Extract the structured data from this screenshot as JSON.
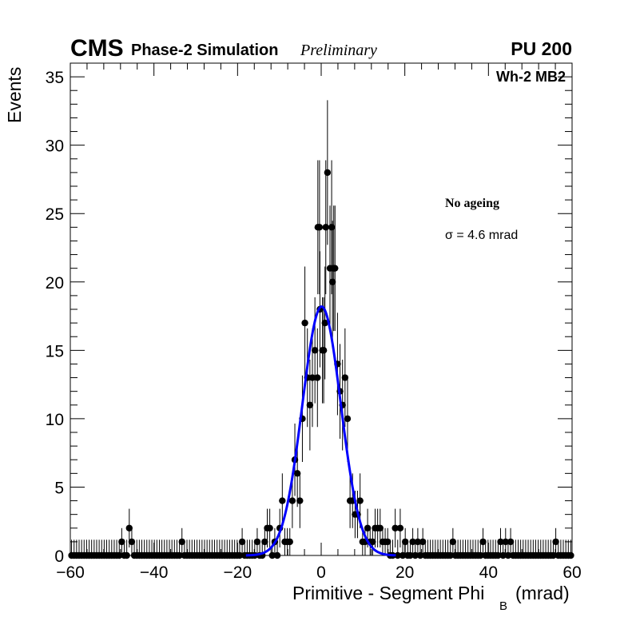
{
  "header": {
    "experiment": "CMS",
    "subtitle": "Phase-2 Simulation",
    "status": "Preliminary",
    "pileup": "PU 200"
  },
  "chart_data": {
    "type": "scatter",
    "title": "",
    "xlabel_main": "Primitive - Segment Phi",
    "xlabel_sub": "B",
    "xlabel_unit": "(mrad)",
    "ylabel": "Events",
    "xlim": [
      -60,
      60
    ],
    "ylim": [
      0,
      36
    ],
    "xticks": [
      -60,
      -40,
      -20,
      0,
      20,
      40,
      60
    ],
    "xtick_labels": [
      "−60",
      "−40",
      "−20",
      "0",
      "20",
      "40",
      "60"
    ],
    "yticks": [
      0,
      5,
      10,
      15,
      20,
      25,
      30,
      35
    ],
    "ytick_labels": [
      "0",
      "5",
      "10",
      "15",
      "20",
      "25",
      "30",
      "35"
    ],
    "bin_width": 0.6,
    "region_label": "Wh-2 MB2",
    "annotation_title": "No ageing",
    "annotation_sigma": "σ = 4.6 mrad",
    "nonzero_bins": [
      {
        "x": -47.7,
        "y": 1
      },
      {
        "x": -45.9,
        "y": 2
      },
      {
        "x": -45.3,
        "y": 1
      },
      {
        "x": -33.3,
        "y": 1
      },
      {
        "x": -18.9,
        "y": 1
      },
      {
        "x": -15.3,
        "y": 1
      },
      {
        "x": -13.5,
        "y": 1
      },
      {
        "x": -12.9,
        "y": 2
      },
      {
        "x": -12.3,
        "y": 2
      },
      {
        "x": -11.1,
        "y": 1
      },
      {
        "x": -9.9,
        "y": 2
      },
      {
        "x": -9.3,
        "y": 4
      },
      {
        "x": -8.7,
        "y": 1
      },
      {
        "x": -8.1,
        "y": 1
      },
      {
        "x": -7.5,
        "y": 1
      },
      {
        "x": -6.9,
        "y": 4
      },
      {
        "x": -6.3,
        "y": 7
      },
      {
        "x": -5.7,
        "y": 6
      },
      {
        "x": -5.1,
        "y": 4
      },
      {
        "x": -4.5,
        "y": 10
      },
      {
        "x": -3.9,
        "y": 17
      },
      {
        "x": -3.3,
        "y": 13
      },
      {
        "x": -2.7,
        "y": 11
      },
      {
        "x": -2.1,
        "y": 13
      },
      {
        "x": -1.5,
        "y": 15
      },
      {
        "x": -0.9,
        "y": 13
      },
      {
        "x": -0.3,
        "y": 18
      },
      {
        "x": 0.3,
        "y": 15
      },
      {
        "x": 0.9,
        "y": 17
      },
      {
        "x": 1.5,
        "y": 28
      },
      {
        "x": 2.1,
        "y": 21
      },
      {
        "x": 2.7,
        "y": 20
      },
      {
        "x": 3.3,
        "y": 21
      },
      {
        "x": 3.9,
        "y": 14
      },
      {
        "x": 4.5,
        "y": 12
      },
      {
        "x": 5.1,
        "y": 11
      },
      {
        "x": 5.7,
        "y": 13
      },
      {
        "x": 6.3,
        "y": 10
      },
      {
        "x": 6.9,
        "y": 4
      },
      {
        "x": 7.5,
        "y": 4
      },
      {
        "x": 8.1,
        "y": 3
      },
      {
        "x": 8.7,
        "y": 3
      },
      {
        "x": 9.3,
        "y": 4
      },
      {
        "x": 9.9,
        "y": 1
      },
      {
        "x": 10.5,
        "y": 1
      },
      {
        "x": 11.1,
        "y": 2
      },
      {
        "x": 11.7,
        "y": 1
      },
      {
        "x": 12.3,
        "y": 1
      },
      {
        "x": 12.9,
        "y": 2
      },
      {
        "x": 13.5,
        "y": 2
      },
      {
        "x": 14.1,
        "y": 2
      },
      {
        "x": 14.7,
        "y": 1
      },
      {
        "x": 15.3,
        "y": 1
      },
      {
        "x": 15.9,
        "y": 1
      },
      {
        "x": 17.7,
        "y": 2
      },
      {
        "x": 18.9,
        "y": 2
      },
      {
        "x": 20.1,
        "y": 1
      },
      {
        "x": 21.9,
        "y": 1
      },
      {
        "x": 23.1,
        "y": 1
      },
      {
        "x": 24.3,
        "y": 1
      },
      {
        "x": 31.5,
        "y": 1
      },
      {
        "x": 38.7,
        "y": 1
      },
      {
        "x": 42.9,
        "y": 1
      },
      {
        "x": 44.1,
        "y": 1
      },
      {
        "x": 45.3,
        "y": 1
      },
      {
        "x": 56.1,
        "y": 1
      }
    ],
    "peak_bins": [
      {
        "x": -0.8,
        "y": 24
      },
      {
        "x": -0.4,
        "y": 24
      },
      {
        "x": 2.5,
        "y": 24
      },
      {
        "x": 3.0,
        "y": 21
      },
      {
        "x": 0.6,
        "y": 15
      },
      {
        "x": 1.1,
        "y": 24
      }
    ],
    "fit": {
      "name": "Gaussian fit",
      "amplitude": 18.2,
      "mean": 0.1,
      "sigma": 4.6,
      "color": "#0000ff"
    },
    "marker_color": "#000000"
  }
}
